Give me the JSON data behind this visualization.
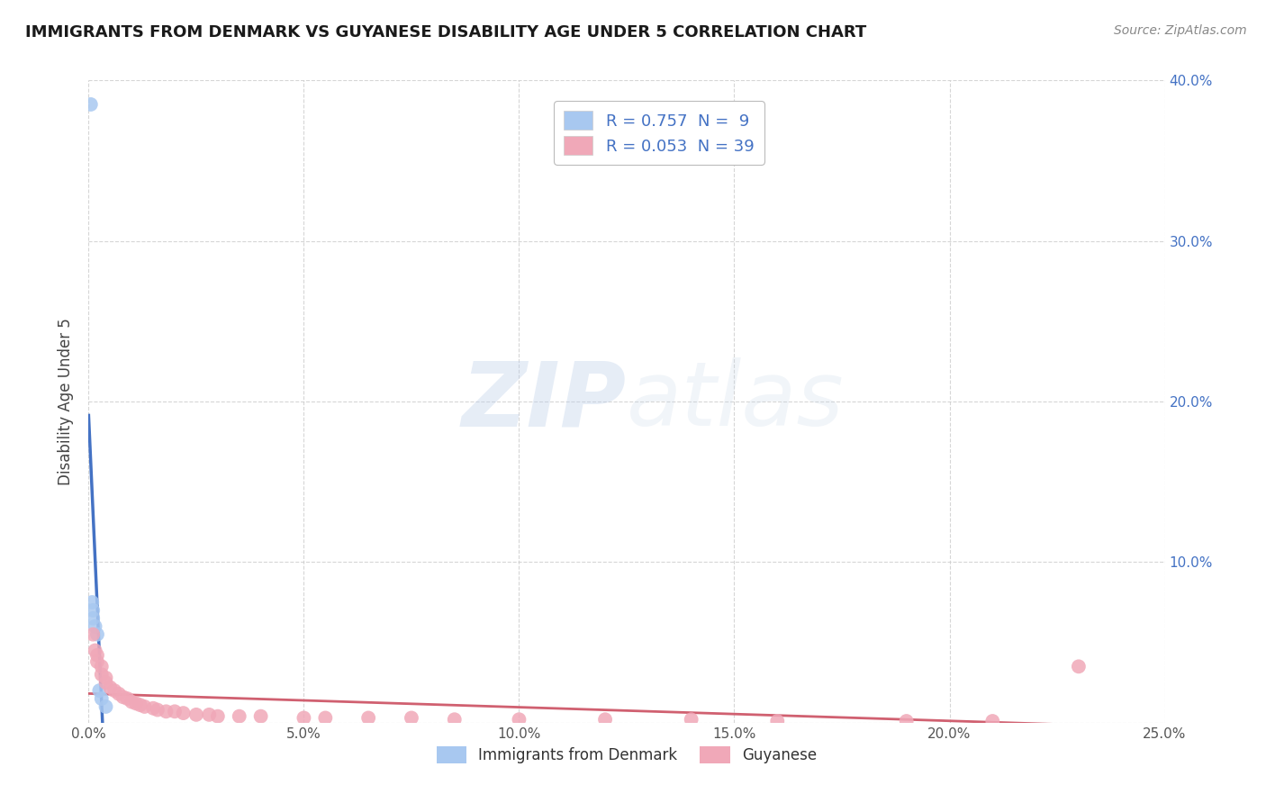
{
  "title": "IMMIGRANTS FROM DENMARK VS GUYANESE DISABILITY AGE UNDER 5 CORRELATION CHART",
  "source": "Source: ZipAtlas.com",
  "ylabel": "Disability Age Under 5",
  "xlim": [
    0,
    0.25
  ],
  "ylim": [
    0,
    0.4
  ],
  "xticks": [
    0.0,
    0.05,
    0.1,
    0.15,
    0.2,
    0.25
  ],
  "yticks": [
    0.0,
    0.1,
    0.2,
    0.3,
    0.4
  ],
  "xticklabels": [
    "0.0%",
    "5.0%",
    "10.0%",
    "15.0%",
    "20.0%",
    "25.0%"
  ],
  "yticklabels_right": [
    "",
    "10.0%",
    "20.0%",
    "30.0%",
    "40.0%"
  ],
  "denmark_color": "#a8c8f0",
  "guyanese_color": "#f0a8b8",
  "regression_denmark_color": "#4472c4",
  "regression_guyanese_color": "#d06070",
  "legend_line1": "R = 0.757  N =  9",
  "legend_line2": "R = 0.053  N = 39",
  "legend_label1": "Immigrants from Denmark",
  "legend_label2": "Guyanese",
  "denmark_x": [
    0.0005,
    0.0008,
    0.001,
    0.001,
    0.0015,
    0.002,
    0.0025,
    0.003,
    0.004
  ],
  "denmark_y": [
    0.385,
    0.075,
    0.07,
    0.065,
    0.06,
    0.055,
    0.02,
    0.015,
    0.01
  ],
  "guyanese_x": [
    0.001,
    0.0015,
    0.002,
    0.002,
    0.003,
    0.003,
    0.004,
    0.004,
    0.005,
    0.006,
    0.007,
    0.008,
    0.009,
    0.01,
    0.011,
    0.012,
    0.013,
    0.015,
    0.016,
    0.018,
    0.02,
    0.022,
    0.025,
    0.028,
    0.03,
    0.035,
    0.04,
    0.05,
    0.055,
    0.065,
    0.075,
    0.085,
    0.1,
    0.12,
    0.14,
    0.16,
    0.19,
    0.21,
    0.23
  ],
  "guyanese_y": [
    0.055,
    0.045,
    0.042,
    0.038,
    0.035,
    0.03,
    0.028,
    0.025,
    0.022,
    0.02,
    0.018,
    0.016,
    0.015,
    0.013,
    0.012,
    0.011,
    0.01,
    0.009,
    0.008,
    0.007,
    0.007,
    0.006,
    0.005,
    0.005,
    0.004,
    0.004,
    0.004,
    0.003,
    0.003,
    0.003,
    0.003,
    0.002,
    0.002,
    0.002,
    0.002,
    0.001,
    0.001,
    0.001,
    0.035
  ],
  "watermark_zip": "ZIP",
  "watermark_atlas": "atlas",
  "background_color": "#ffffff",
  "grid_color": "#cccccc",
  "title_fontsize": 13,
  "source_fontsize": 10
}
